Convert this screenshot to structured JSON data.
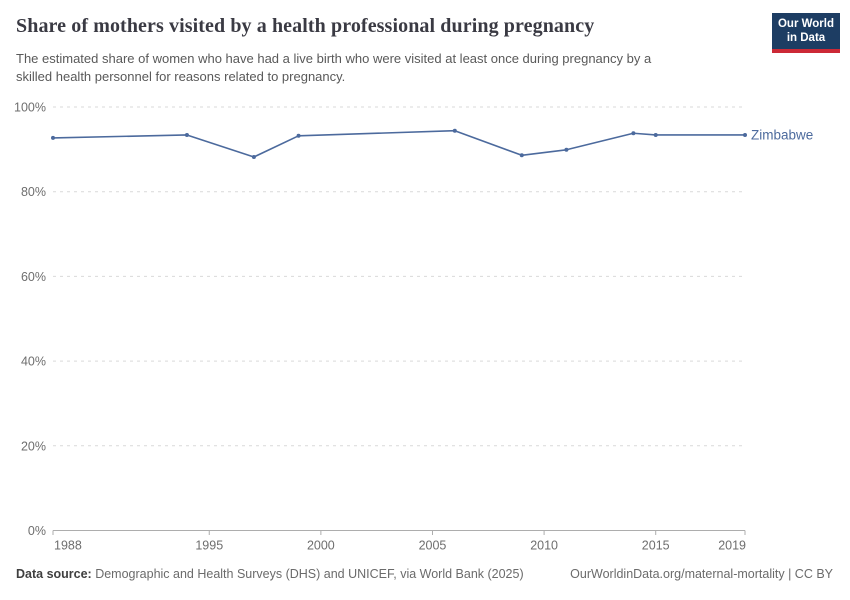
{
  "header": {
    "title": "Share of mothers visited by a health professional during pregnancy",
    "subtitle_line1": "The estimated share of women who have had a live birth who were visited at least once during pregnancy by a",
    "subtitle_line2": "skilled health personnel for reasons related to pregnancy.",
    "logo": {
      "line1": "Our World",
      "line2": "in Data"
    }
  },
  "chart_data": {
    "type": "line",
    "title": "Share of mothers visited by a health professional during pregnancy",
    "series": [
      {
        "name": "Zimbabwe",
        "color": "#4c6a9d",
        "x": [
          1988,
          1994,
          1997,
          1999,
          2006,
          2009,
          2011,
          2014,
          2015,
          2019
        ],
        "y": [
          92.7,
          93.4,
          88.2,
          93.2,
          94.4,
          88.6,
          89.9,
          93.8,
          93.4,
          93.4
        ]
      }
    ],
    "xlim": [
      1988,
      2019
    ],
    "ylim": [
      0,
      100
    ],
    "x_ticks": [
      {
        "value": 1988,
        "label": "1988"
      },
      {
        "value": 1995,
        "label": "1995"
      },
      {
        "value": 2000,
        "label": "2000"
      },
      {
        "value": 2005,
        "label": "2005"
      },
      {
        "value": 2010,
        "label": "2010"
      },
      {
        "value": 2015,
        "label": "2015"
      },
      {
        "value": 2019,
        "label": "2019"
      }
    ],
    "y_ticks": [
      {
        "value": 0,
        "label": "0%"
      },
      {
        "value": 20,
        "label": "20%"
      },
      {
        "value": 40,
        "label": "40%"
      },
      {
        "value": 60,
        "label": "60%"
      },
      {
        "value": 80,
        "label": "80%"
      },
      {
        "value": 100,
        "label": "100%"
      }
    ],
    "grid": true,
    "legend": "end-of-line-label",
    "colors": {
      "line": "#4c6a9d",
      "grid": "#d9d9d9",
      "axis": "#adadad",
      "tick_text": "#6e6e6e"
    }
  },
  "footer": {
    "source_label": "Data source:",
    "source_text": " Demographic and Health Surveys (DHS) and UNICEF, via World Bank (2025)",
    "link_text": "OurWorldinData.org/maternal-mortality | CC BY"
  }
}
